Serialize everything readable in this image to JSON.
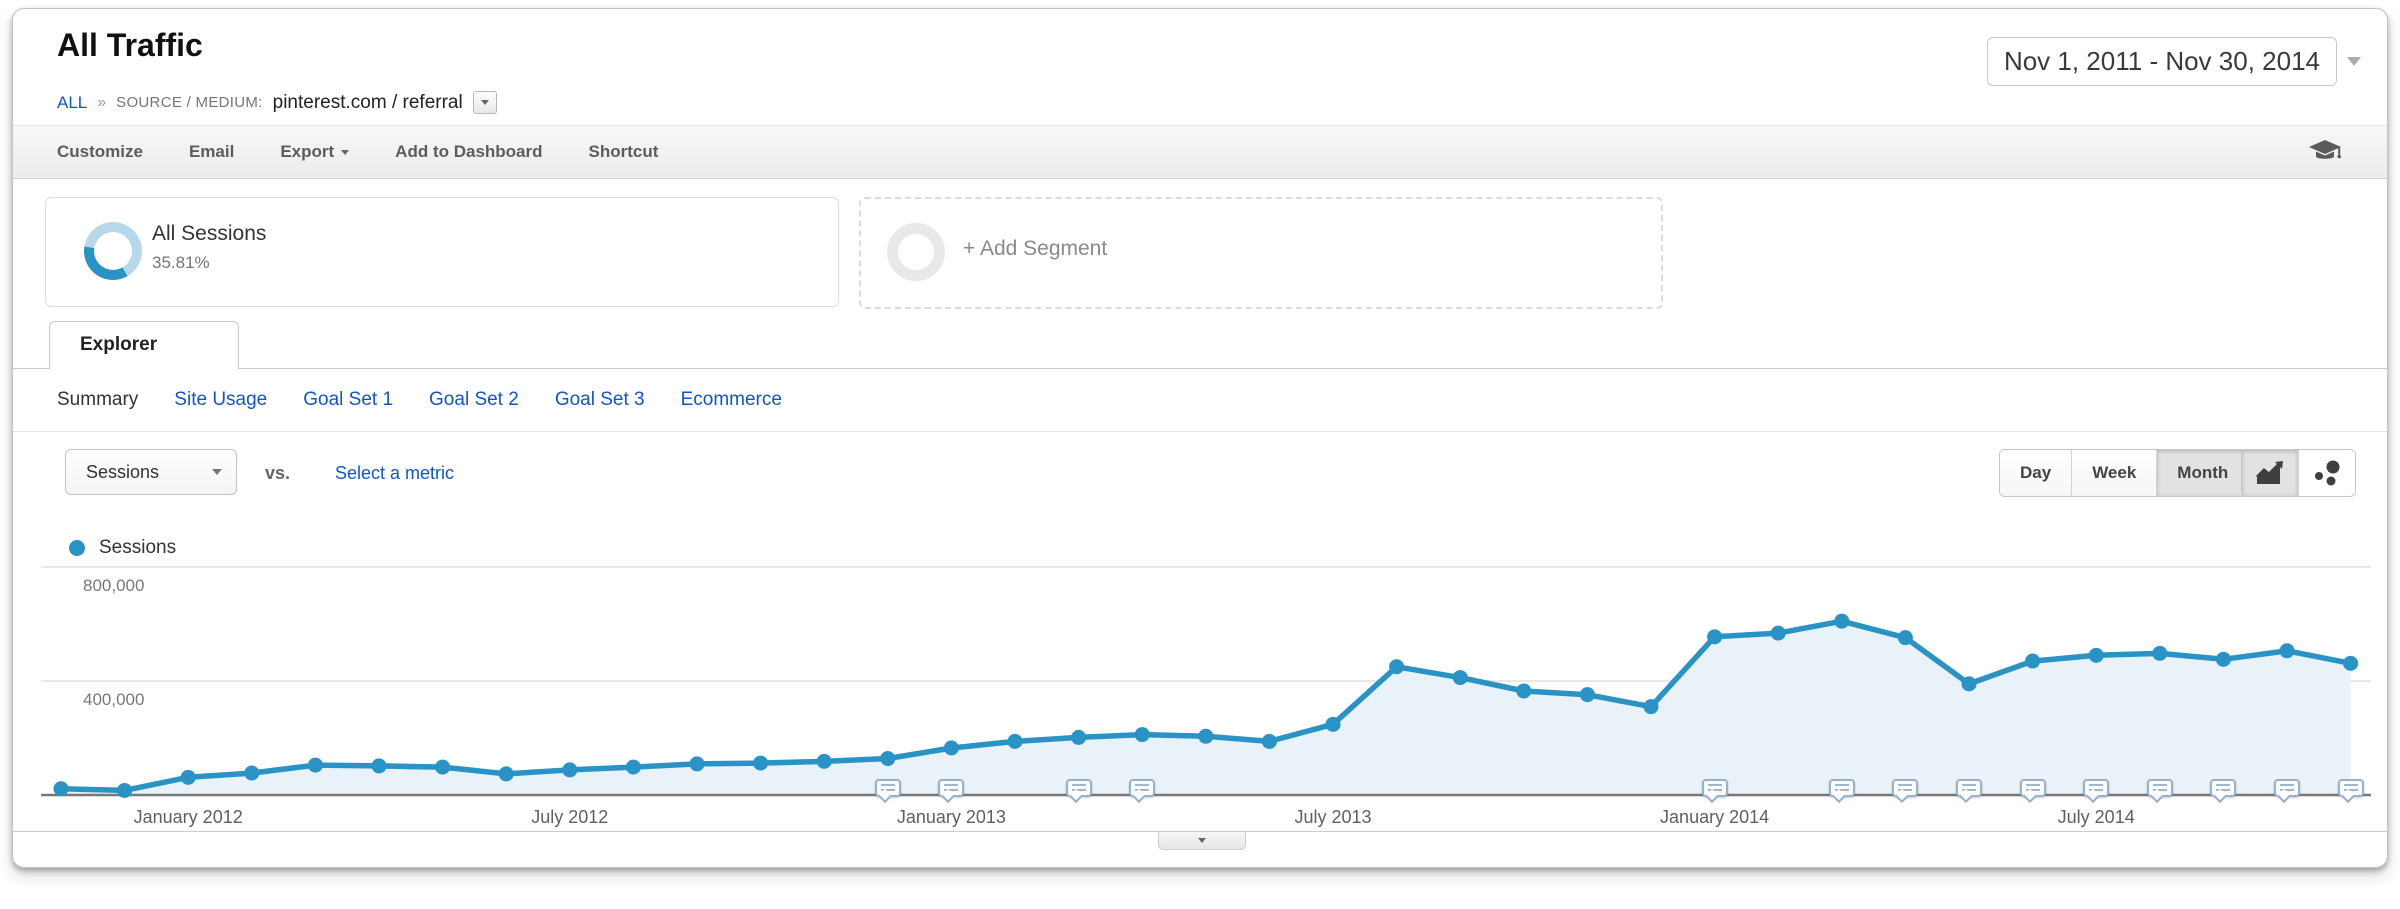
{
  "header": {
    "title": "All Traffic",
    "breadcrumb": {
      "root": "ALL",
      "separator": "»",
      "dimension_label": "SOURCE / MEDIUM:",
      "dimension_value": "pinterest.com / referral"
    },
    "date_range": "Nov 1, 2011 - Nov 30, 2014"
  },
  "toolbar": {
    "items": [
      {
        "label": "Customize"
      },
      {
        "label": "Email"
      },
      {
        "label": "Export",
        "caret": true
      },
      {
        "label": "Add to Dashboard"
      },
      {
        "label": "Shortcut"
      }
    ],
    "education_icon": "graduation-cap"
  },
  "segments": {
    "all_sessions": {
      "label": "All Sessions",
      "percent": "35.81%"
    },
    "add_segment": {
      "label": "+ Add Segment"
    }
  },
  "explorer_tab": "Explorer",
  "subnav": {
    "items": [
      {
        "label": "Summary",
        "active": true
      },
      {
        "label": "Site Usage"
      },
      {
        "label": "Goal Set 1"
      },
      {
        "label": "Goal Set 2"
      },
      {
        "label": "Goal Set 3"
      },
      {
        "label": "Ecommerce"
      }
    ]
  },
  "controls": {
    "metric_selector": "Sessions",
    "vs_label": "vs.",
    "compare_link": "Select a metric",
    "granularity": [
      {
        "label": "Day"
      },
      {
        "label": "Week"
      },
      {
        "label": "Month",
        "active": true
      }
    ],
    "chart_type_icons": [
      "line-chart",
      "motion-chart"
    ]
  },
  "legend": {
    "label": "Sessions",
    "color": "#2a93c5"
  },
  "chart_data": {
    "type": "line",
    "title": "Sessions by month (Nov 1, 2011 - Nov 30, 2014)",
    "series_name": "Sessions",
    "x": [
      "Nov 2011",
      "Dec 2011",
      "Jan 2012",
      "Feb 2012",
      "Mar 2012",
      "Apr 2012",
      "May 2012",
      "Jun 2012",
      "Jul 2012",
      "Aug 2012",
      "Sep 2012",
      "Oct 2012",
      "Nov 2012",
      "Dec 2012",
      "Jan 2013",
      "Feb 2013",
      "Mar 2013",
      "Apr 2013",
      "May 2013",
      "Jun 2013",
      "Jul 2013",
      "Aug 2013",
      "Sep 2013",
      "Oct 2013",
      "Nov 2013",
      "Dec 2013",
      "Jan 2014",
      "Feb 2014",
      "Mar 2014",
      "Apr 2014",
      "May 2014",
      "Jun 2014",
      "Jul 2014",
      "Aug 2014",
      "Sep 2014",
      "Oct 2014",
      "Nov 2014"
    ],
    "values": [
      22000,
      16000,
      62000,
      77000,
      105000,
      102000,
      98000,
      74000,
      88000,
      98000,
      109000,
      112000,
      118000,
      128000,
      165000,
      188000,
      202000,
      212000,
      206000,
      188000,
      248000,
      450000,
      412000,
      365000,
      352000,
      310000,
      555000,
      568000,
      610000,
      552000,
      390000,
      470000,
      490000,
      497000,
      476000,
      506000,
      462000
    ],
    "ylim": [
      0,
      840000
    ],
    "grid": true,
    "legend_position": "top-left",
    "line_color": "#2a93c5",
    "fill_color": "#e9f2f9",
    "y_ticks": [
      {
        "label": "800,000",
        "value": 800000
      },
      {
        "label": "400,000",
        "value": 400000
      }
    ],
    "x_ticks": [
      {
        "month_index": 2,
        "label": "January 2012"
      },
      {
        "month_index": 8,
        "label": "July 2012"
      },
      {
        "month_index": 14,
        "label": "January 2013"
      },
      {
        "month_index": 20,
        "label": "July 2013"
      },
      {
        "month_index": 26,
        "label": "January 2014"
      },
      {
        "month_index": 32,
        "label": "July 2014"
      }
    ],
    "annotation_month_indices": [
      13,
      14,
      16,
      17,
      26,
      28,
      29,
      30,
      31,
      32,
      33,
      34,
      35,
      36
    ]
  }
}
